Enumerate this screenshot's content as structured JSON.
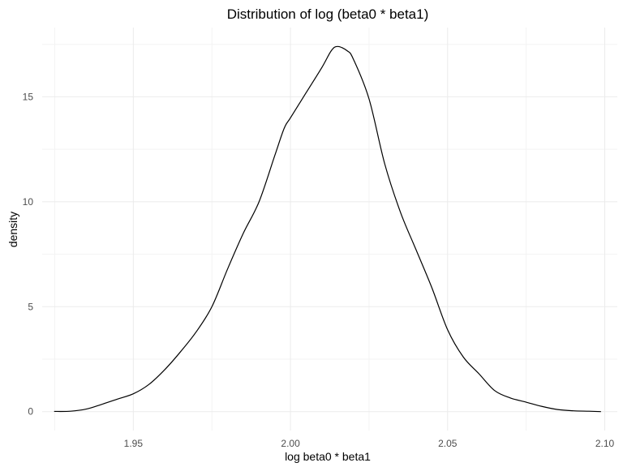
{
  "chart_data": {
    "type": "line",
    "title": "Distribution of log (beta0 * beta1)",
    "xlabel": "log beta0 * beta1",
    "ylabel": "density",
    "xlim": [
      1.921,
      2.104
    ],
    "ylim": [
      -0.9,
      18.3
    ],
    "x_ticks": [
      1.95,
      2.0,
      2.05,
      2.1
    ],
    "x_tick_labels": [
      "1.95",
      "2.00",
      "2.05",
      "2.10"
    ],
    "y_ticks": [
      0,
      5,
      10,
      15
    ],
    "y_tick_labels": [
      "0",
      "5",
      "10",
      "15"
    ],
    "grid": true,
    "legend": "none",
    "series": [
      {
        "x": [
          1.9248,
          1.93,
          1.935,
          1.94,
          1.945,
          1.95,
          1.955,
          1.96,
          1.965,
          1.97,
          1.975,
          1.98,
          1.985,
          1.99,
          1.995,
          1.998,
          2.0,
          2.005,
          2.01,
          2.013,
          2.015,
          2.018,
          2.02,
          2.025,
          2.03,
          2.035,
          2.04,
          2.045,
          2.05,
          2.055,
          2.06,
          2.065,
          2.07,
          2.075,
          2.08,
          2.085,
          2.09,
          2.095,
          2.0988
        ],
        "y": [
          0.01,
          0.02,
          0.12,
          0.35,
          0.6,
          0.85,
          1.3,
          2.0,
          2.85,
          3.8,
          5.0,
          6.8,
          8.5,
          10.0,
          12.2,
          13.5,
          14.0,
          15.2,
          16.4,
          17.2,
          17.4,
          17.2,
          16.8,
          14.9,
          11.8,
          9.5,
          7.7,
          5.9,
          3.9,
          2.6,
          1.8,
          1.0,
          0.65,
          0.45,
          0.25,
          0.1,
          0.04,
          0.02,
          0.0
        ]
      }
    ]
  }
}
